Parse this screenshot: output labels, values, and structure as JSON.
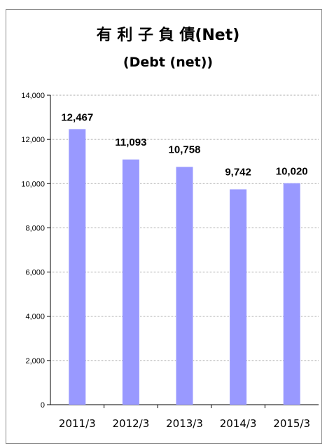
{
  "chart_data": {
    "type": "bar",
    "title": "有 利 子 負 債(Net)",
    "subtitle": "(Debt (net))",
    "xlabel": "",
    "ylabel": "",
    "categories": [
      "2011/3",
      "2012/3",
      "2013/3",
      "2014/3",
      "2015/3"
    ],
    "values": [
      12467,
      11093,
      10758,
      9742,
      10020
    ],
    "data_labels": [
      "12,467",
      "11,093",
      "10,758",
      "9,742",
      "10,020"
    ],
    "ylim": [
      0,
      14000
    ],
    "yticks": [
      0,
      2000,
      4000,
      6000,
      8000,
      10000,
      12000,
      14000
    ],
    "ytick_labels": [
      "0",
      "2,000",
      "4,000",
      "6,000",
      "8,000",
      "10,000",
      "12,000",
      "14,000"
    ],
    "grid": true,
    "legend": "none",
    "bar_color": "#9999ff"
  }
}
